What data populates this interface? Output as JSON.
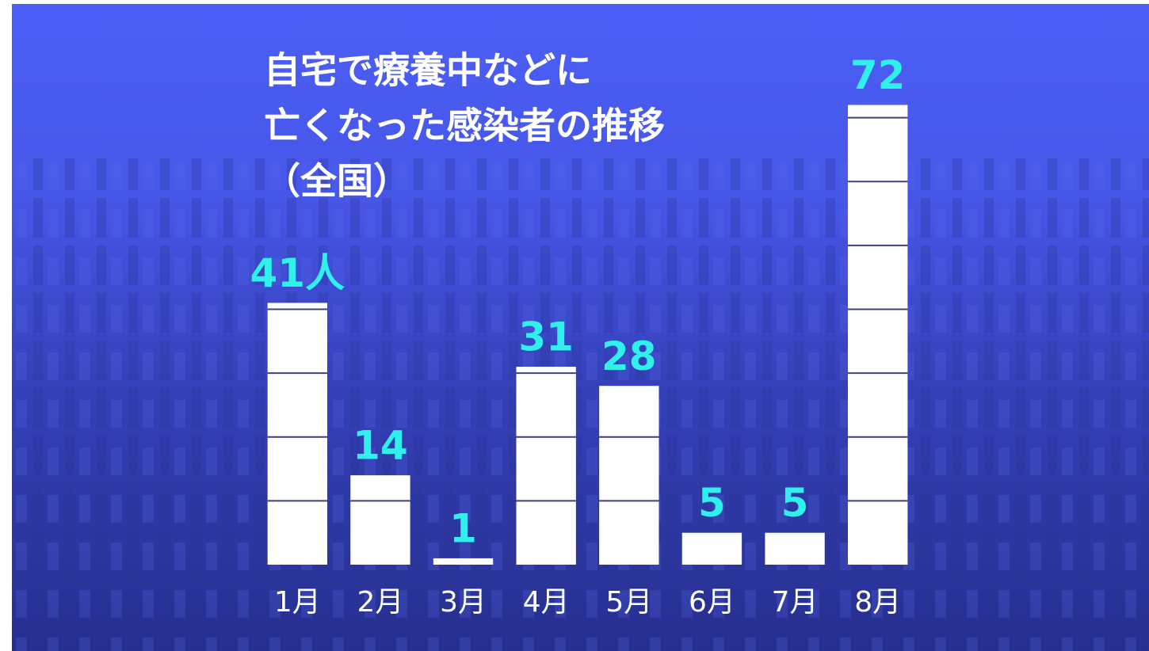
{
  "chart_data": {
    "type": "bar",
    "title": [
      "自宅で療養中などに",
      "亡くなった感染者の推移",
      "（全国）"
    ],
    "categories": [
      "1月",
      "2月",
      "3月",
      "4月",
      "5月",
      "6月",
      "7月",
      "8月"
    ],
    "values": [
      41,
      14,
      1,
      31,
      28,
      5,
      5,
      72
    ],
    "value_labels": [
      "41人",
      "14",
      "1",
      "31",
      "28",
      "5",
      "5",
      "72"
    ],
    "color": "#ffffff",
    "label_color": "#2ff0ea",
    "ylim": [
      0,
      80
    ],
    "yticks": [
      10,
      20,
      30,
      40,
      50,
      60,
      70
    ],
    "grid": true
  }
}
